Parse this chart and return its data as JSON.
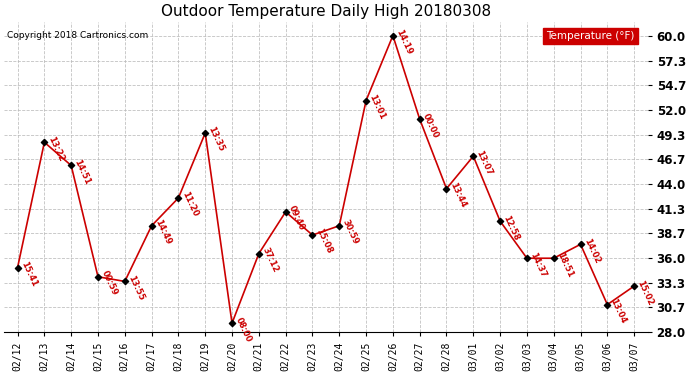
{
  "title": "Outdoor Temperature Daily High 20180308",
  "copyright": "Copyright 2018 Cartronics.com",
  "legend_label": "Temperature (°F)",
  "dates": [
    "02/12",
    "02/13",
    "02/14",
    "02/15",
    "02/16",
    "02/17",
    "02/18",
    "02/19",
    "02/20",
    "02/21",
    "02/22",
    "02/23",
    "02/24",
    "02/25",
    "02/26",
    "02/27",
    "02/28",
    "03/01",
    "03/02",
    "03/03",
    "03/04",
    "03/05",
    "03/06",
    "03/07"
  ],
  "temps": [
    35.0,
    48.5,
    46.0,
    34.0,
    33.5,
    39.5,
    42.5,
    49.5,
    29.0,
    36.5,
    41.0,
    38.5,
    39.5,
    53.0,
    60.0,
    51.0,
    43.5,
    47.0,
    40.0,
    36.0,
    36.0,
    37.5,
    31.0,
    33.0
  ],
  "labels": [
    "15:41",
    "13:22",
    "14:51",
    "00:59",
    "13:55",
    "14:49",
    "11:20",
    "13:35",
    "08:00",
    "37:12",
    "09:40",
    "15:08",
    "30:59",
    "13:01",
    "14:19",
    "00:00",
    "13:44",
    "13:07",
    "12:58",
    "14:37",
    "18:51",
    "14:02",
    "13:04",
    "15:02"
  ],
  "ylim": [
    28.0,
    61.5
  ],
  "yticks": [
    28.0,
    30.7,
    33.3,
    36.0,
    38.7,
    41.3,
    44.0,
    46.7,
    49.3,
    52.0,
    54.7,
    57.3,
    60.0
  ],
  "line_color": "#cc0000",
  "marker_color": "#000000",
  "label_color": "#cc0000",
  "title_color": "#000000",
  "copyright_color": "#000000",
  "background_color": "#ffffff",
  "grid_color": "#bbbbbb",
  "legend_bg": "#cc0000",
  "legend_text_color": "#ffffff"
}
